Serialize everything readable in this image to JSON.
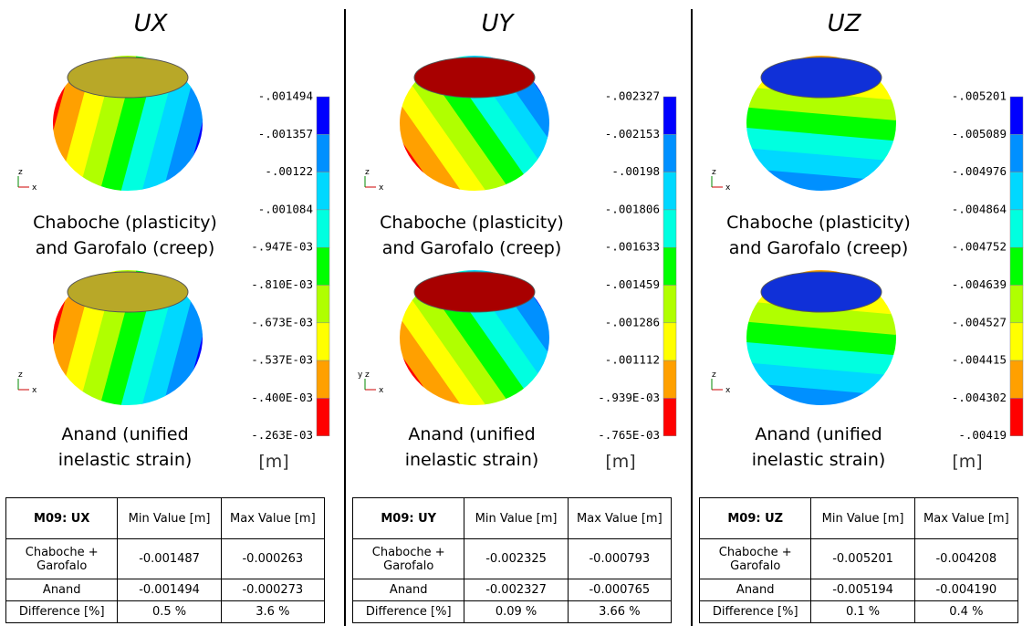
{
  "panels": [
    {
      "title": "UX",
      "colorbar_labels": [
        "-.001494",
        "-.001357",
        "-.00122",
        "-.001084",
        "-.947E-03",
        "-.810E-03",
        "-.673E-03",
        "-.537E-03",
        "-.400E-03",
        "-.263E-03"
      ],
      "unit": "[m]",
      "models": [
        {
          "caption": [
            "Chaboche (plasticity)",
            "and Garofalo (creep)"
          ],
          "axes": [
            "z",
            "x"
          ]
        },
        {
          "caption": [
            "Anand (unified",
            "inelastic strain)"
          ],
          "axes": [
            "z",
            "x"
          ]
        }
      ],
      "table": {
        "header": [
          "M09: UX",
          "Min Value [m]",
          "Max Value [m]"
        ],
        "rows": [
          [
            "Chaboche + Garofalo",
            "-0.001487",
            "-0.000263"
          ],
          [
            "Anand",
            "-0.001494",
            "-0.000273"
          ],
          [
            "Difference [%]",
            "0.5 %",
            "3.6 %"
          ]
        ]
      }
    },
    {
      "title": "UY",
      "colorbar_labels": [
        "-.002327",
        "-.002153",
        "-.00198",
        "-.001806",
        "-.001633",
        "-.001459",
        "-.001286",
        "-.001112",
        "-.939E-03",
        "-.765E-03"
      ],
      "unit": "[m]",
      "models": [
        {
          "caption": [
            "Chaboche (plasticity)",
            "and Garofalo (creep)"
          ],
          "axes": [
            "z",
            "x"
          ]
        },
        {
          "caption": [
            "Anand (unified",
            "inelastic strain)"
          ],
          "axes": [
            "y",
            "z",
            "x"
          ]
        }
      ],
      "table": {
        "header": [
          "M09: UY",
          "Min Value [m]",
          "Max Value [m]"
        ],
        "rows": [
          [
            "Chaboche + Garofalo",
            "-0.002325",
            "-0.000793"
          ],
          [
            "Anand",
            "-0.002327",
            "-0.000765"
          ],
          [
            "Difference [%]",
            "0.09 %",
            "3.66 %"
          ]
        ]
      }
    },
    {
      "title": "UZ",
      "colorbar_labels": [
        "-.005201",
        "-.005089",
        "-.004976",
        "-.004864",
        "-.004752",
        "-.004639",
        "-.004527",
        "-.004415",
        "-.004302",
        "-.00419"
      ],
      "unit": "[m]",
      "models": [
        {
          "caption": [
            "Chaboche (plasticity)",
            "and Garofalo (creep)"
          ],
          "axes": [
            "z",
            "x"
          ]
        },
        {
          "caption": [
            "Anand (unified",
            "inelastic strain)"
          ],
          "axes": [
            "z",
            "x"
          ]
        }
      ],
      "table": {
        "header": [
          "M09: UZ",
          "Min Value [m]",
          "Max Value [m]"
        ],
        "rows": [
          [
            "Chaboche + Garofalo",
            "-0.005201",
            "-0.004208"
          ],
          [
            "Anand",
            "-0.005194",
            "-0.004190"
          ],
          [
            "Difference [%]",
            "0.1 %",
            "0.4 %"
          ]
        ]
      }
    }
  ]
}
